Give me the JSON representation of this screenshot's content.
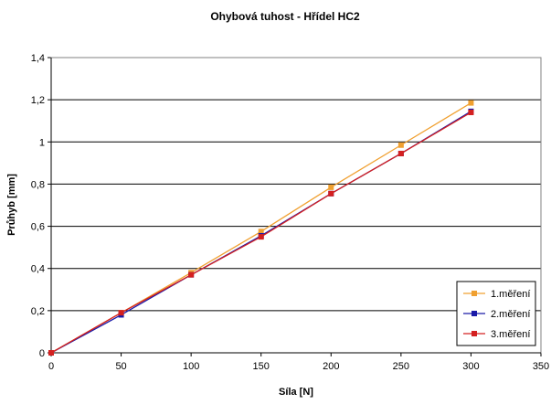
{
  "chart_data": {
    "type": "line",
    "title": "Ohybová tuhost - Hřídel HC2",
    "xlabel": "Síla [N]",
    "ylabel": "Průhyb [mm]",
    "xlim": [
      0,
      350
    ],
    "ylim": [
      0,
      1.4
    ],
    "x_ticks": [
      "0",
      "50",
      "100",
      "150",
      "200",
      "250",
      "300",
      "350"
    ],
    "y_ticks": [
      "0",
      "0,2",
      "0,4",
      "0,6",
      "0,8",
      "1",
      "1,2",
      "1,4"
    ],
    "grid": "horizontal",
    "legend_position": "bottom-right",
    "x": [
      0,
      50,
      100,
      150,
      200,
      250,
      300
    ],
    "series": [
      {
        "name": "1.měření",
        "color": "#f0a030",
        "marker": "square",
        "values": [
          0,
          0.19,
          0.38,
          0.575,
          0.785,
          0.985,
          1.185
        ]
      },
      {
        "name": "2.měření",
        "color": "#1a1aa8",
        "marker": "square",
        "values": [
          0,
          0.18,
          0.37,
          0.555,
          0.755,
          0.945,
          1.145
        ]
      },
      {
        "name": "3.měření",
        "color": "#d42020",
        "marker": "square",
        "values": [
          0,
          0.19,
          0.37,
          0.55,
          0.755,
          0.945,
          1.14
        ]
      }
    ]
  }
}
